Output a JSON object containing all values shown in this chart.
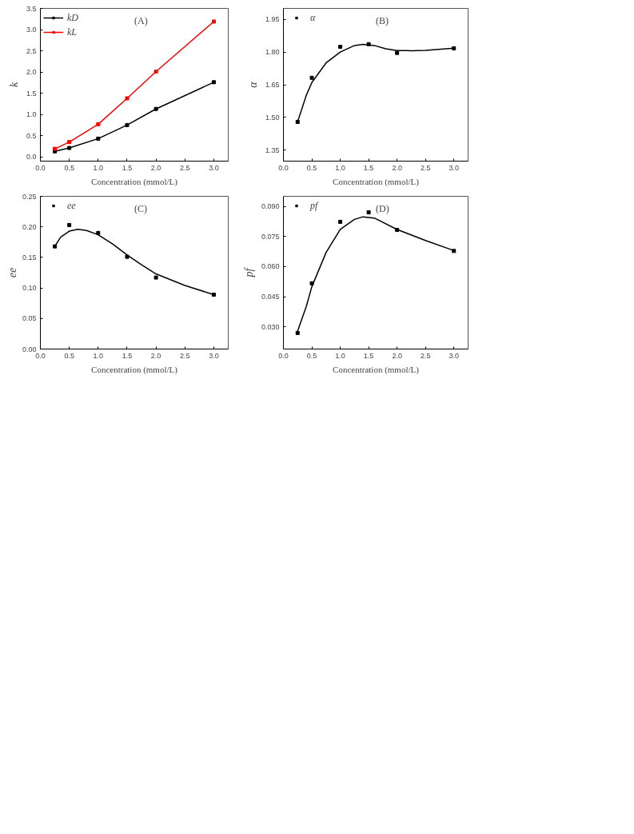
{
  "chart_data": [
    {
      "type": "line",
      "xlabel": "Concentration (mmol/L)",
      "ylabel": "k",
      "annotations": [
        "(A)"
      ],
      "marker": "square",
      "legend": "top left",
      "grid": false,
      "x": [
        0.25,
        0.5,
        1.0,
        1.5,
        2.0,
        3.0
      ],
      "series": [
        {
          "name": "kD",
          "color": "#000000",
          "values": [
            0.13,
            0.21,
            0.43,
            0.75,
            1.13,
            1.76
          ]
        },
        {
          "name": "kL",
          "color": "#ff0000",
          "values": [
            0.19,
            0.35,
            0.77,
            1.38,
            2.01,
            3.19
          ]
        }
      ],
      "xlim": [
        0,
        3.25
      ],
      "xticks": [
        {
          "value": 0,
          "label": "0.0"
        },
        0.5,
        {
          "value": 1,
          "label": "1.0"
        },
        1.5,
        {
          "value": 2,
          "label": "2.0"
        },
        2.5,
        {
          "value": 3,
          "label": "3.0"
        }
      ],
      "ylim": [
        -0.1,
        3.5
      ],
      "yticks": [
        {
          "value": 0,
          "label": "0.0"
        },
        0.5,
        {
          "value": 1,
          "label": "1.0"
        },
        1.5,
        {
          "value": 2,
          "label": "2.0"
        },
        2.5,
        {
          "value": 3,
          "label": "3.0"
        },
        3.5
      ]
    },
    {
      "type": "scatter",
      "xlabel": "Concentration (mmol/L)",
      "ylabel": "α",
      "annotations": [
        "(B)"
      ],
      "marker": "square",
      "legend": "top left",
      "grid": false,
      "x": [
        0.25,
        0.5,
        1.0,
        1.5,
        2.0,
        3.0
      ],
      "series": [
        {
          "name": "α",
          "color": "#000000",
          "values": [
            1.48,
            1.682,
            1.824,
            1.836,
            1.796,
            1.817
          ]
        },
        {
          "type": "line",
          "marker": "none",
          "color": "#000000",
          "x": [
            0.25,
            0.4,
            0.5,
            0.75,
            1.0,
            1.25,
            1.4,
            1.6,
            1.8,
            2.0,
            2.25,
            2.5,
            3.0
          ],
          "values": [
            1.48,
            1.6,
            1.66,
            1.75,
            1.8,
            1.83,
            1.835,
            1.83,
            1.815,
            1.807,
            1.806,
            1.808,
            1.818
          ]
        }
      ],
      "xlim": [
        0,
        3.25
      ],
      "xticks": [
        {
          "value": 0,
          "label": "0.0"
        },
        0.5,
        {
          "value": 1,
          "label": "1.0"
        },
        1.5,
        {
          "value": 2,
          "label": "2.0"
        },
        2.5,
        {
          "value": 3,
          "label": "3.0"
        }
      ],
      "ylim": [
        1.3,
        2.0
      ],
      "yticks": [
        1.35,
        {
          "value": 1.5,
          "label": "1.50"
        },
        1.65,
        {
          "value": 1.8,
          "label": "1.80"
        },
        1.95
      ]
    },
    {
      "type": "scatter",
      "xlabel": "Concentration (mmol/L)",
      "ylabel": "ee",
      "annotations": [
        "(C)"
      ],
      "marker": "square",
      "legend": "top left",
      "grid": false,
      "x": [
        0.25,
        0.5,
        1.0,
        1.5,
        2.0,
        3.0
      ],
      "series": [
        {
          "name": "ee",
          "color": "#000000",
          "values": [
            0.168,
            0.203,
            0.19,
            0.151,
            0.117,
            0.089
          ]
        },
        {
          "type": "line",
          "marker": "none",
          "color": "#000000",
          "x": [
            0.25,
            0.35,
            0.5,
            0.65,
            0.8,
            1.0,
            1.25,
            1.5,
            1.75,
            2.0,
            2.5,
            3.0
          ],
          "values": [
            0.168,
            0.183,
            0.193,
            0.196,
            0.194,
            0.187,
            0.172,
            0.154,
            0.138,
            0.123,
            0.104,
            0.089
          ]
        }
      ],
      "xlim": [
        0,
        3.25
      ],
      "xticks": [
        {
          "value": 0,
          "label": "0.0"
        },
        0.5,
        {
          "value": 1,
          "label": "1.0"
        },
        1.5,
        {
          "value": 2,
          "label": "2.0"
        },
        2.5,
        {
          "value": 3,
          "label": "3.0"
        }
      ],
      "ylim": [
        0,
        0.25
      ],
      "yticks": [
        {
          "value": 0,
          "label": "0.00"
        },
        0.05,
        {
          "value": 0.1,
          "label": "0.10"
        },
        0.15,
        {
          "value": 0.2,
          "label": "0.20"
        },
        0.25
      ]
    },
    {
      "type": "scatter",
      "xlabel": "Concentration (mmol/L)",
      "ylabel": "pf",
      "annotations": [
        "(D)"
      ],
      "marker": "square",
      "legend": "top left",
      "grid": false,
      "x": [
        0.25,
        0.5,
        1.0,
        1.5,
        2.0,
        3.0
      ],
      "series": [
        {
          "name": "pf",
          "color": "#000000",
          "values": [
            0.027,
            0.0517,
            0.0823,
            0.087,
            0.0783,
            0.0678
          ]
        },
        {
          "type": "line",
          "marker": "none",
          "color": "#000000",
          "x": [
            0.25,
            0.4,
            0.5,
            0.75,
            1.0,
            1.25,
            1.4,
            1.6,
            2.0,
            2.5,
            3.0
          ],
          "values": [
            0.028,
            0.04,
            0.05,
            0.067,
            0.0785,
            0.0835,
            0.0848,
            0.0842,
            0.0785,
            0.073,
            0.068
          ]
        }
      ],
      "xlim": [
        0,
        3.25
      ],
      "xticks": [
        {
          "value": 0,
          "label": "0.0"
        },
        0.5,
        {
          "value": 1,
          "label": "1.0"
        },
        1.5,
        {
          "value": 2,
          "label": "2.0"
        },
        2.5,
        {
          "value": 3,
          "label": "3.0"
        }
      ],
      "ylim": [
        0.019,
        0.095
      ],
      "yticks": [
        {
          "value": 0.03,
          "label": "0.030"
        },
        0.045,
        {
          "value": 0.06,
          "label": "0.060"
        },
        0.075,
        {
          "value": 0.09,
          "label": "0.090"
        }
      ]
    }
  ]
}
